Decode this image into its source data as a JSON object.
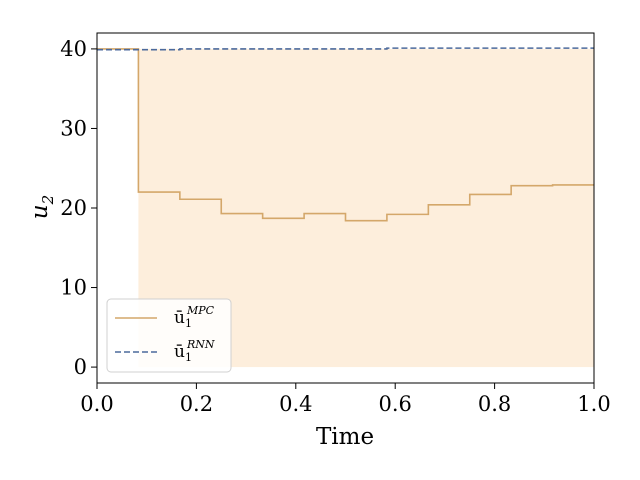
{
  "chart_data": {
    "type": "line",
    "xlabel": "Time",
    "ylabel": "u",
    "ylabel_sub": "2",
    "xlim": [
      0.0,
      1.0
    ],
    "ylim": [
      -2,
      42
    ],
    "x_ticks": [
      0.0,
      0.2,
      0.4,
      0.6,
      0.8,
      1.0
    ],
    "x_tick_labels": [
      "0.0",
      "0.2",
      "0.4",
      "0.6",
      "0.8",
      "1.0"
    ],
    "y_ticks": [
      0,
      10,
      20,
      30,
      40
    ],
    "y_tick_labels": [
      "0",
      "10",
      "20",
      "30",
      "40"
    ],
    "grid": false,
    "legend_position": "lower-left",
    "colors": {
      "mpc": "#d4a76a",
      "rnn": "#4c6a9c",
      "band": "#fdeedc"
    },
    "shaded_region": {
      "x": [
        0.0833,
        1.0
      ],
      "y": [
        0,
        40
      ]
    },
    "series": [
      {
        "name_base": "ū",
        "name_sub": "1",
        "name_sup": "MPC",
        "style": "solid-step",
        "x": [
          0.0,
          0.0833,
          0.1667,
          0.25,
          0.3333,
          0.4167,
          0.5,
          0.5833,
          0.6667,
          0.75,
          0.8333,
          0.9167,
          1.0
        ],
        "values": [
          40.0,
          22.0,
          21.1,
          19.3,
          18.7,
          19.3,
          18.4,
          19.2,
          20.4,
          21.7,
          22.8,
          22.9,
          22.9
        ]
      },
      {
        "name_base": "ū",
        "name_sub": "1",
        "name_sup": "RNN",
        "style": "dashed-step",
        "x": [
          0.0,
          0.0833,
          0.1667,
          0.25,
          0.3333,
          0.4167,
          0.5,
          0.5833,
          0.6667,
          0.75,
          0.8333,
          0.9167,
          1.0
        ],
        "values": [
          39.9,
          39.9,
          40.0,
          40.0,
          40.0,
          40.0,
          40.0,
          40.1,
          40.1,
          40.1,
          40.1,
          40.1,
          40.1
        ]
      }
    ]
  }
}
